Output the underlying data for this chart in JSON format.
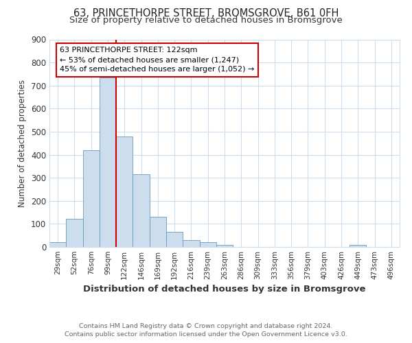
{
  "title": "63, PRINCETHORPE STREET, BROMSGROVE, B61 0FH",
  "subtitle": "Size of property relative to detached houses in Bromsgrove",
  "xlabel": "Distribution of detached houses by size in Bromsgrove",
  "ylabel": "Number of detached properties",
  "footnote1": "Contains HM Land Registry data © Crown copyright and database right 2024.",
  "footnote2": "Contains public sector information licensed under the Open Government Licence v3.0.",
  "bar_labels": [
    "29sqm",
    "52sqm",
    "76sqm",
    "99sqm",
    "122sqm",
    "146sqm",
    "169sqm",
    "192sqm",
    "216sqm",
    "239sqm",
    "263sqm",
    "286sqm",
    "309sqm",
    "333sqm",
    "356sqm",
    "379sqm",
    "403sqm",
    "426sqm",
    "449sqm",
    "473sqm",
    "496sqm"
  ],
  "bar_heights": [
    20,
    122,
    420,
    735,
    480,
    315,
    130,
    65,
    30,
    22,
    10,
    0,
    0,
    0,
    0,
    0,
    0,
    0,
    8,
    0,
    0
  ],
  "bar_color": "#ccdded",
  "bar_edge_color": "#6699bb",
  "vline_color": "#cc0000",
  "annotation_line1": "63 PRINCETHORPE STREET: 122sqm",
  "annotation_line2": "← 53% of detached houses are smaller (1,247)",
  "annotation_line3": "45% of semi-detached houses are larger (1,052) →",
  "annotation_box_color": "#cc0000",
  "ylim": [
    0,
    900
  ],
  "yticks": [
    0,
    100,
    200,
    300,
    400,
    500,
    600,
    700,
    800,
    900
  ],
  "grid_color": "#ccddee",
  "background_color": "#ffffff",
  "title_fontsize": 10.5,
  "subtitle_fontsize": 9.5,
  "footnote_color": "#666666"
}
